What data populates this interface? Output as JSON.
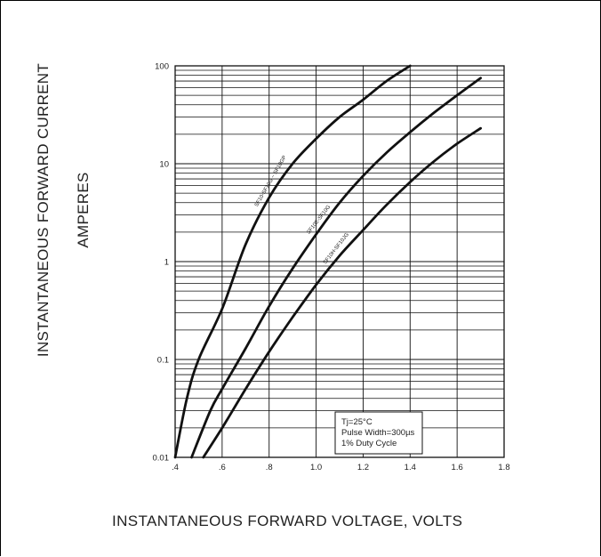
{
  "chart_data": {
    "type": "line",
    "title": "",
    "xlabel": "INSTANTANEOUS FORWARD VOLTAGE,  VOLTS",
    "ylabel_line1": "INSTANTANEOUS FORWARD CURRENT",
    "ylabel_line2": "AMPERES",
    "xlim": [
      0.4,
      1.8
    ],
    "ylim": [
      0.01,
      100
    ],
    "y_scale": "log",
    "grid": true,
    "x_ticks": [
      ".4",
      ".6",
      ".8",
      "1.0",
      "1.2",
      "1.4",
      "1.6",
      "1.8"
    ],
    "y_ticks": [
      "0.01",
      "0.1",
      "1",
      "10",
      "100"
    ],
    "series": [
      {
        "name": "SF10-SF10G ~ SF10GP",
        "x": [
          0.4,
          0.45,
          0.5,
          0.6,
          0.7,
          0.8,
          0.9,
          1.0,
          1.1,
          1.2,
          1.3,
          1.4
        ],
        "y": [
          0.01,
          0.04,
          0.1,
          0.33,
          1.5,
          4.5,
          10,
          18,
          30,
          45,
          70,
          100
        ]
      },
      {
        "name": "SF10E-SF10G",
        "x": [
          0.47,
          0.55,
          0.6,
          0.7,
          0.8,
          0.9,
          1.0,
          1.1,
          1.2,
          1.3,
          1.4,
          1.5,
          1.6,
          1.7
        ],
        "y": [
          0.01,
          0.03,
          0.05,
          0.13,
          0.35,
          0.85,
          1.9,
          4,
          7.5,
          13,
          21,
          33,
          50,
          75
        ]
      },
      {
        "name": "SF10H-SF10JG",
        "x": [
          0.52,
          0.6,
          0.7,
          0.8,
          0.9,
          1.0,
          1.1,
          1.2,
          1.3,
          1.4,
          1.5,
          1.6,
          1.7
        ],
        "y": [
          0.01,
          0.02,
          0.05,
          0.12,
          0.27,
          0.58,
          1.15,
          2.1,
          3.8,
          6.5,
          10.5,
          16,
          23
        ]
      }
    ],
    "annotations": [
      "Tj=25°C",
      "Pulse Width=300µs",
      "1% Duty Cycle"
    ]
  }
}
